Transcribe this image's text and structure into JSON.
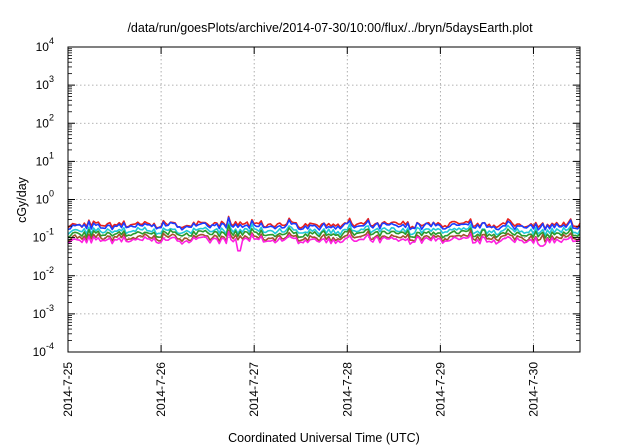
{
  "chart_data": {
    "type": "line",
    "title": "/data/run/goesPlots/archive/2014-07-30/10:00/flux/../bryn/5daysEarth.plot",
    "xlabel": "Coordinated Universal Time (UTC)",
    "ylabel": "cGy/day",
    "yscale": "log",
    "ylim": [
      0.0001,
      10000
    ],
    "xlim": [
      "2014-7-25",
      "2014-7-30 12:00"
    ],
    "x_ticks": [
      "2014-7-25",
      "2014-7-26",
      "2014-7-27",
      "2014-7-28",
      "2014-7-29",
      "2014-7-30"
    ],
    "y_ticks": [
      {
        "base": "10",
        "exp": "-4"
      },
      {
        "base": "10",
        "exp": "-3"
      },
      {
        "base": "10",
        "exp": "-2"
      },
      {
        "base": "10",
        "exp": "-1"
      },
      {
        "base": "10",
        "exp": "0"
      },
      {
        "base": "10",
        "exp": "1"
      },
      {
        "base": "10",
        "exp": "2"
      },
      {
        "base": "10",
        "exp": "3"
      },
      {
        "base": "10",
        "exp": "4"
      }
    ],
    "grid": true,
    "series": [
      {
        "color": "#e8201c",
        "level": 0.22
      },
      {
        "color": "#1a3cff",
        "level": 0.2
      },
      {
        "color": "#20c8d8",
        "level": 0.15
      },
      {
        "color": "#2a9a2a",
        "level": 0.125
      },
      {
        "color": "#a0522d",
        "level": 0.1
      },
      {
        "color": "#ff20e0",
        "level": 0.085
      }
    ],
    "notable_dips": [
      {
        "x": "2014-7-26 20:00",
        "value": 0.045
      },
      {
        "x": "2014-7-30 02:00",
        "value": 0.06
      }
    ]
  }
}
